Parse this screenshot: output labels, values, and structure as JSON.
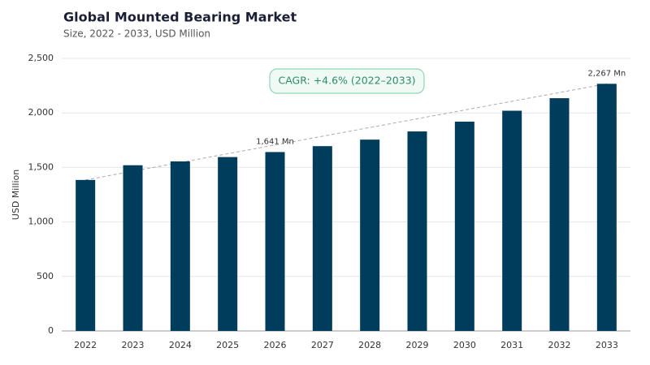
{
  "chart_data": {
    "type": "bar",
    "title": "Global Mounted Bearing Market",
    "subtitle": "Size, 2022 - 2033, USD Million",
    "y_label": "USD Million",
    "annotation": "CAGR: +4.6% (2022–2033)",
    "categories": [
      "2022",
      "2023",
      "2024",
      "2025",
      "2026",
      "2027",
      "2028",
      "2029",
      "2030",
      "2031",
      "2032",
      "2033"
    ],
    "values": [
      1385,
      1520,
      1555,
      1595,
      1641,
      1695,
      1755,
      1830,
      1920,
      2020,
      2135,
      2267
    ],
    "value_labels": [
      null,
      null,
      null,
      null,
      "1,641 Mn",
      null,
      null,
      null,
      null,
      null,
      null,
      "2,267 Mn"
    ],
    "color": "#003d5c",
    "ylim": [
      0,
      2500
    ],
    "yticks": [
      0,
      500,
      {
        "value": 1000,
        "label": "1,000"
      },
      {
        "value": 1500,
        "label": "1,500"
      },
      {
        "value": 2000,
        "label": "2,000"
      },
      {
        "value": 2500,
        "label": "2,500"
      }
    ],
    "grid": true
  }
}
